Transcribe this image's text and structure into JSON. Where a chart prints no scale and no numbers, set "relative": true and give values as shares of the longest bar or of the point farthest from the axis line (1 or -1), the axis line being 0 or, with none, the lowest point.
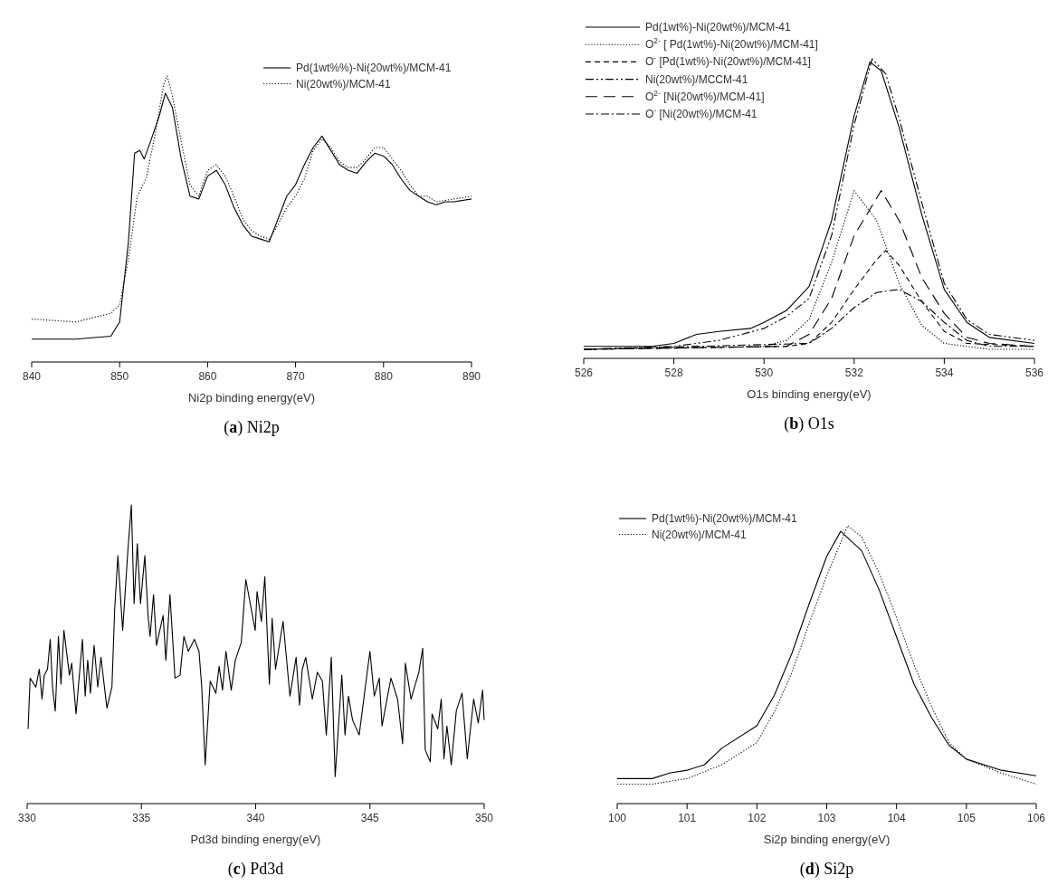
{
  "chart_data": [
    {
      "type": "line",
      "title": "(a) Ni2p",
      "xlabel": "Ni2p binding energy(eV)",
      "relative": true,
      "xlim": [
        840,
        890
      ],
      "xticks": [
        840,
        850,
        860,
        870,
        880,
        890
      ],
      "legend": "top right",
      "series": [
        {
          "name": "Pd(1wt%%)-Ni(20wt%)/MCM-41",
          "color": "#000000",
          "line_style": "solid",
          "x": [
            840,
            845,
            849,
            850,
            851,
            851.7,
            852.3,
            852.8,
            853.5,
            854.5,
            855.2,
            856,
            857,
            858,
            859,
            860,
            861,
            862,
            863,
            864,
            865,
            866,
            867,
            868,
            869,
            870,
            871,
            872,
            873,
            874,
            875,
            876,
            877,
            878,
            879,
            880,
            881,
            882,
            883,
            884,
            885,
            886,
            887,
            888,
            890
          ],
          "values": [
            0.08,
            0.08,
            0.09,
            0.14,
            0.42,
            0.73,
            0.74,
            0.71,
            0.77,
            0.86,
            0.94,
            0.89,
            0.71,
            0.58,
            0.57,
            0.65,
            0.67,
            0.62,
            0.54,
            0.48,
            0.44,
            0.43,
            0.42,
            0.5,
            0.58,
            0.62,
            0.69,
            0.75,
            0.79,
            0.74,
            0.69,
            0.67,
            0.66,
            0.7,
            0.73,
            0.72,
            0.69,
            0.64,
            0.6,
            0.58,
            0.56,
            0.55,
            0.56,
            0.56,
            0.57
          ]
        },
        {
          "name": "Ni(20wt%)/MCM-41",
          "color": "#000000",
          "line_style": "dotted",
          "x": [
            840,
            845,
            849,
            850,
            851,
            852,
            853,
            854,
            855,
            855.4,
            856,
            857,
            858,
            859,
            860,
            861,
            862,
            863,
            864,
            865,
            866,
            867,
            868,
            869,
            870,
            871,
            872,
            873,
            874,
            875,
            876,
            877,
            878,
            879,
            880,
            881,
            882,
            883,
            884,
            885,
            886,
            888,
            890
          ],
          "values": [
            0.15,
            0.14,
            0.17,
            0.2,
            0.36,
            0.58,
            0.64,
            0.79,
            0.97,
            1,
            0.93,
            0.77,
            0.62,
            0.58,
            0.67,
            0.69,
            0.65,
            0.58,
            0.5,
            0.46,
            0.44,
            0.43,
            0.48,
            0.54,
            0.58,
            0.64,
            0.74,
            0.78,
            0.75,
            0.7,
            0.68,
            0.68,
            0.71,
            0.75,
            0.75,
            0.71,
            0.67,
            0.62,
            0.58,
            0.58,
            0.56,
            0.57,
            0.58
          ]
        }
      ]
    },
    {
      "type": "line",
      "title": "(b) O1s",
      "xlabel": "O1s binding energy(eV)",
      "relative": true,
      "xlim": [
        526,
        536
      ],
      "xticks": [
        526,
        528,
        530,
        532,
        534,
        536
      ],
      "legend": "top left",
      "series": [
        {
          "name": "Pd(1wt%)-Ni(20wt%)/MCM-41",
          "color": "#000000",
          "line_style": "solid",
          "x": [
            526,
            527.5,
            528,
            528.5,
            529,
            529.7,
            530,
            530.5,
            531,
            531.5,
            532,
            532.35,
            532.6,
            533,
            533.5,
            534,
            534.5,
            535,
            536
          ],
          "values": [
            0.04,
            0.04,
            0.05,
            0.08,
            0.09,
            0.1,
            0.12,
            0.16,
            0.24,
            0.46,
            0.81,
            0.99,
            0.96,
            0.77,
            0.48,
            0.23,
            0.12,
            0.07,
            0.05
          ]
        },
        {
          "name": "O$^{2-}$ [ Pd(1wt%)-Ni(20wt%)/MCM-41]",
          "color": "#000000",
          "line_style": "dotted",
          "x": [
            526,
            530,
            530.5,
            531,
            531.5,
            532,
            532.5,
            533,
            533.5,
            534,
            535,
            536
          ],
          "values": [
            0.03,
            0.04,
            0.06,
            0.13,
            0.32,
            0.56,
            0.46,
            0.25,
            0.11,
            0.05,
            0.03,
            0.03
          ]
        },
        {
          "name": "O$^{-}$ [Pd(1wt%)-Ni(20wt%)/MCM-41]",
          "color": "#000000",
          "line_style": "dashed",
          "x": [
            526,
            530.5,
            531,
            531.5,
            532,
            532.5,
            532.7,
            533,
            533.5,
            534,
            534.5,
            536
          ],
          "values": [
            0.03,
            0.04,
            0.05,
            0.12,
            0.23,
            0.33,
            0.36,
            0.31,
            0.19,
            0.09,
            0.05,
            0.04
          ]
        },
        {
          "name": "Ni(20wt%)/MCCM-41",
          "color": "#000000",
          "line_style": "dashdotdot",
          "x": [
            526,
            528,
            529,
            530,
            530.5,
            531,
            531.5,
            532,
            532.4,
            532.7,
            533,
            533.5,
            534,
            534.5,
            535,
            536
          ],
          "values": [
            0.03,
            0.04,
            0.06,
            0.1,
            0.14,
            0.2,
            0.41,
            0.78,
            1,
            0.95,
            0.8,
            0.52,
            0.25,
            0.13,
            0.08,
            0.06
          ]
        },
        {
          "name": "O$^{2-}$ [Ni(20wt%)/MCM-41]",
          "color": "#000000",
          "line_style": "longdash",
          "x": [
            526,
            530.5,
            531,
            531.5,
            532,
            532.6,
            533,
            533.5,
            534,
            534.5,
            535,
            536
          ],
          "values": [
            0.03,
            0.04,
            0.08,
            0.2,
            0.41,
            0.56,
            0.46,
            0.27,
            0.15,
            0.07,
            0.05,
            0.04
          ]
        },
        {
          "name": "O$^{-}$ [Ni(20wt%)/MCM-41",
          "color": "#000000",
          "line_style": "dashdot",
          "x": [
            526,
            531,
            531.5,
            532,
            532.5,
            533,
            533.5,
            534,
            534.5,
            535,
            536
          ],
          "values": [
            0.03,
            0.05,
            0.1,
            0.17,
            0.22,
            0.23,
            0.19,
            0.12,
            0.06,
            0.04,
            0.04
          ]
        }
      ]
    },
    {
      "type": "line",
      "title": "(c) Pd3d",
      "xlabel": "Pd3d binding energy(eV)",
      "relative": true,
      "xlim": [
        330,
        350
      ],
      "xticks": [
        330,
        335,
        340,
        345,
        350
      ],
      "series": [
        {
          "color": "#000000",
          "line_style": "solid",
          "x": [
            330.04,
            330.13,
            330.38,
            330.53,
            330.65,
            330.75,
            330.89,
            331.01,
            331.11,
            331.23,
            331.37,
            331.48,
            331.61,
            331.85,
            331.95,
            332.14,
            332.42,
            332.54,
            332.65,
            332.77,
            332.93,
            333.09,
            333.23,
            333.49,
            333.71,
            333.83,
            333.97,
            334.18,
            334.41,
            334.56,
            334.68,
            334.82,
            334.96,
            335.15,
            335.29,
            335.38,
            335.53,
            335.66,
            335.95,
            336.07,
            336.25,
            336.47,
            336.69,
            336.86,
            337.05,
            337.32,
            337.52,
            337.64,
            337.79,
            338.01,
            338.26,
            338.4,
            338.55,
            338.7,
            338.93,
            339.11,
            339.37,
            339.57,
            339.69,
            339.98,
            340.06,
            340.25,
            340.4,
            340.6,
            340.72,
            340.87,
            341.2,
            341.5,
            341.77,
            341.92,
            342.04,
            342.19,
            342.48,
            342.7,
            342.92,
            343.09,
            343.31,
            343.48,
            343.77,
            343.91,
            344.06,
            344.24,
            344.53,
            345,
            345.19,
            345.41,
            345.53,
            345.92,
            346.21,
            346.43,
            346.55,
            346.8,
            347.14,
            347.31,
            347.42,
            347.64,
            347.72,
            347.97,
            348.12,
            348.24,
            348.37,
            348.56,
            348.78,
            349.03,
            349.26,
            349.54,
            349.74,
            349.93,
            350
          ],
          "values": [
            0.25,
            0.42,
            0.39,
            0.45,
            0.35,
            0.43,
            0.45,
            0.55,
            0.39,
            0.31,
            0.56,
            0.4,
            0.58,
            0.43,
            0.47,
            0.3,
            0.55,
            0.36,
            0.48,
            0.37,
            0.53,
            0.39,
            0.49,
            0.32,
            0.39,
            0.65,
            0.83,
            0.58,
            0.85,
            1,
            0.67,
            0.87,
            0.67,
            0.83,
            0.63,
            0.56,
            0.7,
            0.53,
            0.63,
            0.48,
            0.7,
            0.42,
            0.43,
            0.56,
            0.51,
            0.55,
            0.51,
            0.39,
            0.13,
            0.41,
            0.37,
            0.46,
            0.38,
            0.51,
            0.38,
            0.48,
            0.54,
            0.75,
            0.7,
            0.58,
            0.71,
            0.61,
            0.76,
            0.4,
            0.62,
            0.45,
            0.61,
            0.36,
            0.49,
            0.33,
            0.45,
            0.49,
            0.35,
            0.44,
            0.41,
            0.23,
            0.49,
            0.09,
            0.43,
            0.23,
            0.36,
            0.28,
            0.23,
            0.51,
            0.36,
            0.42,
            0.26,
            0.42,
            0.35,
            0.2,
            0.47,
            0.35,
            0.44,
            0.52,
            0.18,
            0.14,
            0.3,
            0.25,
            0.35,
            0.15,
            0.26,
            0.13,
            0.31,
            0.37,
            0.15,
            0.35,
            0.27,
            0.38,
            0.28
          ]
        }
      ]
    },
    {
      "type": "line",
      "title": "(d) Si2p",
      "xlabel": "Si2p binding energy(eV)",
      "relative": true,
      "xlim": [
        100,
        106
      ],
      "xticks": [
        100,
        101,
        102,
        103,
        104,
        105,
        106
      ],
      "legend": "top left",
      "series": [
        {
          "name": "Pd(1wt%)-Ni(20wt%)/MCM-41",
          "color": "#000000",
          "line_style": "solid",
          "x": [
            100,
            100.5,
            100.75,
            101,
            101.25,
            101.5,
            102,
            102.25,
            102.5,
            102.75,
            103,
            103.2,
            103.5,
            103.75,
            104,
            104.25,
            104.5,
            104.75,
            105,
            105.5,
            106
          ],
          "values": [
            0.09,
            0.09,
            0.11,
            0.12,
            0.14,
            0.2,
            0.28,
            0.39,
            0.54,
            0.72,
            0.89,
            0.98,
            0.91,
            0.77,
            0.6,
            0.43,
            0.31,
            0.21,
            0.16,
            0.12,
            0.1
          ]
        },
        {
          "name": "Ni(20wt%)/MCM-41",
          "color": "#000000",
          "line_style": "dotted",
          "x": [
            100,
            100.5,
            101,
            101.5,
            102,
            102.25,
            102.5,
            102.75,
            103,
            103.3,
            103.5,
            103.75,
            104,
            104.25,
            104.5,
            104.75,
            105,
            105.5,
            106
          ],
          "values": [
            0.07,
            0.07,
            0.09,
            0.14,
            0.22,
            0.33,
            0.47,
            0.65,
            0.82,
            1,
            0.96,
            0.83,
            0.67,
            0.5,
            0.35,
            0.22,
            0.16,
            0.11,
            0.07
          ]
        }
      ]
    }
  ]
}
